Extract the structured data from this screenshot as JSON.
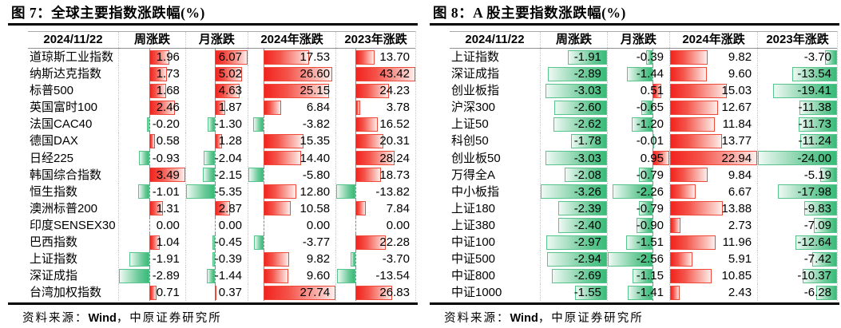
{
  "colors": {
    "positive_bar": "#f2231f",
    "negative_bar": "#38bb79",
    "rule": "#000000"
  },
  "source_line": {
    "prefix": "资料来源：",
    "wind": "Wind",
    "suffix": "，中原证券研究所"
  },
  "panels": [
    {
      "title": "图 7：全球主要指数涨跌幅(%)"
    },
    {
      "title": "图 8：A 股主要指数涨跌幅(%)"
    }
  ],
  "chart_data": [
    {
      "type": "table",
      "title": "图 7：全球主要指数涨跌幅(%)",
      "date_header": "2024/11/22",
      "columns": [
        "周涨跌",
        "月涨跌",
        "2024年涨跌",
        "2023年涨跌"
      ],
      "bar_style": "excel-data-bars, red positive / green negative, auto axis",
      "rows": [
        [
          "道琼斯工业指数",
          1.96,
          6.07,
          17.53,
          13.7
        ],
        [
          "纳斯达克指数",
          1.73,
          5.02,
          26.6,
          43.42
        ],
        [
          "标普500",
          1.68,
          4.63,
          25.15,
          24.23
        ],
        [
          "英国富时100",
          2.46,
          1.87,
          6.84,
          3.78
        ],
        [
          "法国CAC40",
          -0.2,
          -1.3,
          -3.82,
          16.52
        ],
        [
          "德国DAX",
          0.58,
          1.28,
          15.35,
          20.31
        ],
        [
          "日经225",
          -0.93,
          -2.04,
          14.4,
          28.24
        ],
        [
          "韩国综合指数",
          3.49,
          -2.15,
          -5.8,
          18.73
        ],
        [
          "恒生指数",
          -1.01,
          -5.35,
          12.8,
          -13.82
        ],
        [
          "澳洲标普200",
          1.31,
          2.87,
          10.58,
          7.84
        ],
        [
          "印度SENSEX30",
          0.0,
          0.0,
          0.0,
          0.0
        ],
        [
          "巴西指数",
          1.04,
          -0.45,
          -3.77,
          22.28
        ],
        [
          "上证指数",
          -1.91,
          -0.39,
          9.82,
          -3.7
        ],
        [
          "深证成指",
          -2.89,
          -1.44,
          9.6,
          -13.54
        ],
        [
          "台湾加权指数",
          0.71,
          0.37,
          27.74,
          26.83
        ]
      ]
    },
    {
      "type": "table",
      "title": "图 8：A 股主要指数涨跌幅(%)",
      "date_header": "2024/11/22",
      "columns": [
        "周涨跌",
        "月涨跌",
        "2024年涨跌",
        "2023年涨跌"
      ],
      "bar_style": "excel-data-bars, red positive / green negative, auto axis",
      "rows": [
        [
          "上证指数",
          -1.91,
          -0.39,
          9.82,
          -3.7
        ],
        [
          "深证成指",
          -2.89,
          -1.44,
          9.6,
          -13.54
        ],
        [
          "创业板指",
          -3.03,
          0.51,
          15.03,
          -19.41
        ],
        [
          "沪深300",
          -2.6,
          -0.65,
          12.67,
          -11.38
        ],
        [
          "上证50",
          -2.62,
          -1.2,
          11.84,
          -11.73
        ],
        [
          "科创50",
          -1.78,
          -0.01,
          13.77,
          -11.24
        ],
        [
          "创业板50",
          -3.03,
          0.95,
          22.94,
          -24.0
        ],
        [
          "万得全A",
          -2.08,
          -0.79,
          9.84,
          -5.19
        ],
        [
          "中小板指",
          -3.26,
          -2.26,
          6.67,
          -17.98
        ],
        [
          "上证180",
          -2.39,
          -0.79,
          13.88,
          -9.83
        ],
        [
          "上证380",
          -2.4,
          -0.9,
          2.73,
          -7.09
        ],
        [
          "中证100",
          -2.97,
          -1.51,
          11.96,
          -12.64
        ],
        [
          "中证500",
          -2.94,
          -2.56,
          5.91,
          -7.42
        ],
        [
          "中证800",
          -2.69,
          -1.15,
          10.85,
          -10.37
        ],
        [
          "中证1000",
          -1.55,
          -1.41,
          2.43,
          -6.28
        ]
      ]
    }
  ]
}
